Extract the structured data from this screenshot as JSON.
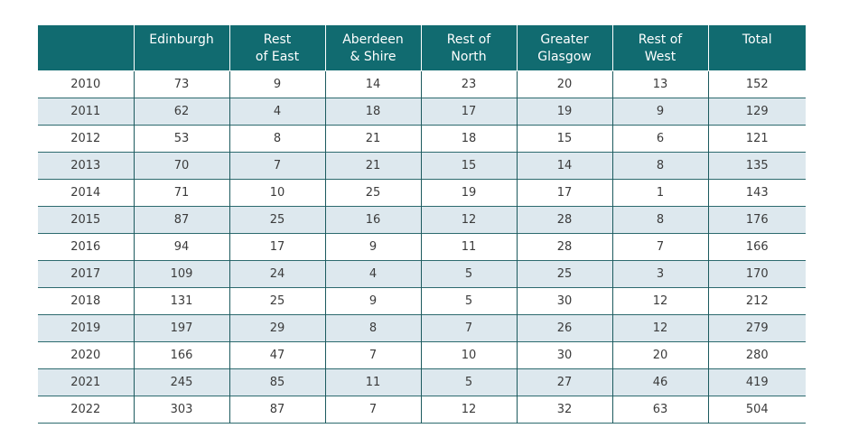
{
  "table": {
    "headers": [
      [
        "",
        ""
      ],
      [
        "Edinburgh",
        ""
      ],
      [
        "Rest",
        "of East"
      ],
      [
        "Aberdeen",
        "& Shire"
      ],
      [
        "Rest of",
        "North"
      ],
      [
        "Greater",
        "Glasgow"
      ],
      [
        "Rest of",
        "West"
      ],
      [
        "Total",
        ""
      ]
    ],
    "rows": [
      [
        "2010",
        "73",
        "9",
        "14",
        "23",
        "20",
        "13",
        "152"
      ],
      [
        "2011",
        "62",
        "4",
        "18",
        "17",
        "19",
        "9",
        "129"
      ],
      [
        "2012",
        "53",
        "8",
        "21",
        "18",
        "15",
        "6",
        "121"
      ],
      [
        "2013",
        "70",
        "7",
        "21",
        "15",
        "14",
        "8",
        "135"
      ],
      [
        "2014",
        "71",
        "10",
        "25",
        "19",
        "17",
        "1",
        "143"
      ],
      [
        "2015",
        "87",
        "25",
        "16",
        "12",
        "28",
        "8",
        "176"
      ],
      [
        "2016",
        "94",
        "17",
        "9",
        "11",
        "28",
        "7",
        "166"
      ],
      [
        "2017",
        "109",
        "24",
        "4",
        "5",
        "25",
        "3",
        "170"
      ],
      [
        "2018",
        "131",
        "25",
        "9",
        "5",
        "30",
        "12",
        "212"
      ],
      [
        "2019",
        "197",
        "29",
        "8",
        "7",
        "26",
        "12",
        "279"
      ],
      [
        "2020",
        "166",
        "47",
        "7",
        "10",
        "30",
        "20",
        "280"
      ],
      [
        "2021",
        "245",
        "85",
        "11",
        "5",
        "27",
        "46",
        "419"
      ],
      [
        "2022",
        "303",
        "87",
        "7",
        "12",
        "32",
        "63",
        "504"
      ]
    ]
  },
  "colors": {
    "header_bg": "#116b70",
    "stripe_bg": "#dde8ee",
    "rule": "#2c6a6e"
  }
}
